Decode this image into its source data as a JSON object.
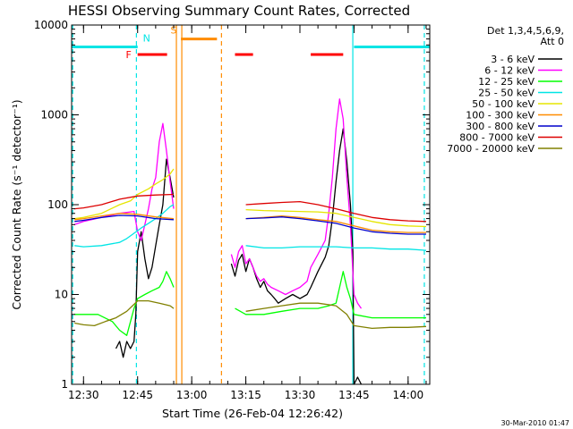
{
  "chart_data": {
    "type": "line",
    "title": "HESSI Observing Summary Count Rates, Corrected",
    "xlabel": "Start Time (26-Feb-04 12:26:42)",
    "ylabel": "Corrected Count Rate (s⁻¹ detector⁻¹)",
    "y_scale": "log",
    "ylim": [
      1,
      10000
    ],
    "xlim": [
      "12:26:42",
      "14:06:00"
    ],
    "ytick_labels": [
      "1",
      "10",
      "100",
      "1000",
      "10000"
    ],
    "xtick_labels": [
      "12:30",
      "12:45",
      "13:00",
      "13:15",
      "13:30",
      "13:45",
      "14:00"
    ],
    "legend_title": [
      "Det 1,3,4,5,6,9,",
      "Att 0"
    ],
    "timestamp": "30-Mar-2010 01:47",
    "state_flags": [
      {
        "label": "F",
        "color": "#ff0000",
        "level": 4700,
        "intervals": [
          [
            "12:45:00",
            "12:53:10"
          ],
          [
            "13:12:00",
            "13:17:00"
          ],
          [
            "13:33:00",
            "13:42:00"
          ]
        ]
      },
      {
        "label": "N",
        "color": "#00e5e5",
        "level": 5700,
        "intervals": [
          [
            "12:26:42",
            "12:45:00"
          ],
          [
            "13:45:00",
            "14:06:00"
          ]
        ]
      },
      {
        "label": "S",
        "color": "#ff8c00",
        "level": 7000,
        "intervals": [
          [
            "12:57:00",
            "13:07:00"
          ]
        ]
      }
    ],
    "vertical_lines": [
      {
        "time": "12:27:00",
        "color": "#00e5e5",
        "style": "dashed"
      },
      {
        "time": "12:44:40",
        "color": "#00e5e5",
        "style": "dashed"
      },
      {
        "time": "12:55:45",
        "color": "#ff8c00",
        "style": "solid"
      },
      {
        "time": "12:57:15",
        "color": "#ff8c00",
        "style": "solid"
      },
      {
        "time": "13:08:15",
        "color": "#ff8c00",
        "style": "dashed"
      },
      {
        "time": "13:44:40",
        "color": "#00e5e5",
        "style": "solid"
      },
      {
        "time": "14:04:30",
        "color": "#00e5e5",
        "style": "dashed"
      }
    ],
    "gaps": [
      [
        "12:55:45",
        "13:10:00"
      ]
    ],
    "series": [
      {
        "name": "3 - 6 keV",
        "color": "#000000",
        "x": [
          "12:27:30",
          "12:35:00",
          "12:39:00",
          "12:40:00",
          "12:41:00",
          "12:42:00",
          "12:43:00",
          "12:44:00",
          "12:44:30",
          "12:45:00",
          "12:46:00",
          "12:47:00",
          "12:48:00",
          "12:49:00",
          "12:50:00",
          "12:51:00",
          "12:52:00",
          "12:53:00",
          "12:54:00",
          "12:55:00",
          "13:10:00",
          "13:11:00",
          "13:12:00",
          "13:13:00",
          "13:14:00",
          "13:15:00",
          "13:16:00",
          "13:17:00",
          "13:18:00",
          "13:19:00",
          "13:20:00",
          "13:21:00",
          "13:22:00",
          "13:23:00",
          "13:24:00",
          "13:26:00",
          "13:28:00",
          "13:30:00",
          "13:32:00",
          "13:33:00",
          "13:35:00",
          "13:37:00",
          "13:38:00",
          "13:39:00",
          "13:40:00",
          "13:41:00",
          "13:42:00",
          "13:43:00",
          "13:44:00",
          "13:44:40",
          "13:45:00",
          "13:46:00",
          "13:47:00"
        ],
        "values": [
          null,
          null,
          2.5,
          3,
          2,
          3,
          2.5,
          3,
          6,
          30,
          50,
          25,
          15,
          20,
          35,
          60,
          100,
          320,
          200,
          120,
          null,
          22,
          16,
          24,
          28,
          18,
          25,
          20,
          15,
          12,
          14,
          11,
          10,
          9,
          8,
          9,
          10,
          9,
          10,
          12,
          18,
          26,
          35,
          70,
          180,
          400,
          700,
          300,
          100,
          30,
          1,
          1.2,
          1
        ]
      },
      {
        "name": "6 - 12 keV",
        "color": "#ff00ff",
        "x": [
          "12:27:30",
          "12:30:00",
          "12:35:00",
          "12:40:00",
          "12:42:00",
          "12:44:00",
          "12:45:00",
          "12:46:00",
          "12:47:00",
          "12:48:00",
          "12:49:00",
          "12:50:00",
          "12:51:00",
          "12:52:00",
          "12:53:00",
          "12:54:00",
          "12:55:00",
          "13:10:00",
          "13:11:00",
          "13:12:00",
          "13:13:00",
          "13:14:00",
          "13:15:00",
          "13:16:00",
          "13:17:00",
          "13:18:00",
          "13:19:00",
          "13:20:00",
          "13:21:00",
          "13:22:00",
          "13:24:00",
          "13:26:00",
          "13:28:00",
          "13:30:00",
          "13:32:00",
          "13:33:00",
          "13:35:00",
          "13:37:00",
          "13:38:00",
          "13:39:00",
          "13:40:00",
          "13:41:00",
          "13:42:00",
          "13:43:00",
          "13:44:00",
          "13:45:00",
          "13:46:00",
          "13:47:00"
        ],
        "values": [
          60,
          65,
          72,
          80,
          82,
          84,
          50,
          40,
          60,
          90,
          150,
          200,
          500,
          800,
          400,
          180,
          90,
          null,
          28,
          20,
          30,
          35,
          22,
          25,
          20,
          16,
          14,
          15,
          13,
          12,
          11,
          10,
          11,
          12,
          14,
          20,
          28,
          40,
          80,
          200,
          700,
          1500,
          900,
          200,
          60,
          10,
          8,
          7
        ]
      },
      {
        "name": "12 - 25 keV",
        "color": "#00ff00",
        "x": [
          "12:27:30",
          "12:30:00",
          "12:34:00",
          "12:38:00",
          "12:40:00",
          "12:42:00",
          "12:44:00",
          "12:45:00",
          "12:47:00",
          "12:49:00",
          "12:51:00",
          "12:52:00",
          "12:53:00",
          "12:54:00",
          "12:55:00",
          "13:10:00",
          "13:12:00",
          "13:15:00",
          "13:20:00",
          "13:25:00",
          "13:30:00",
          "13:35:00",
          "13:38:00",
          "13:40:00",
          "13:41:00",
          "13:42:00",
          "13:43:00",
          "13:44:00",
          "13:45:00",
          "13:50:00",
          "13:55:00",
          "14:00:00",
          "14:05:00"
        ],
        "values": [
          6,
          6,
          6,
          5,
          4,
          3.5,
          7,
          9,
          10,
          11,
          12,
          14,
          18,
          15,
          12,
          null,
          7,
          6,
          6,
          6.5,
          7,
          7,
          7.5,
          8,
          12,
          18,
          12,
          9,
          6,
          5.5,
          5.5,
          5.5,
          5.5
        ]
      },
      {
        "name": "25 - 50 keV",
        "color": "#00e5e5",
        "x": [
          "12:27:30",
          "12:30:00",
          "12:35:00",
          "12:40:00",
          "12:42:00",
          "12:44:00",
          "12:46:00",
          "12:48:00",
          "12:50:00",
          "12:52:00",
          "12:54:00",
          "12:55:00",
          "13:10:00",
          "13:15:00",
          "13:20:00",
          "13:25:00",
          "13:30:00",
          "13:35:00",
          "13:40:00",
          "13:45:00",
          "13:50:00",
          "13:55:00",
          "14:00:00",
          "14:05:00"
        ],
        "values": [
          35,
          34,
          35,
          38,
          42,
          48,
          55,
          62,
          70,
          80,
          95,
          100,
          null,
          35,
          33,
          33,
          34,
          34,
          34,
          33,
          33,
          32,
          32,
          31
        ]
      },
      {
        "name": "50 - 100 keV",
        "color": "#e5e500",
        "x": [
          "12:27:30",
          "12:30:00",
          "12:35:00",
          "12:40:00",
          "12:43:00",
          "12:45:00",
          "12:48:00",
          "12:50:00",
          "12:52:00",
          "12:54:00",
          "12:55:00",
          "13:10:00",
          "13:15:00",
          "13:20:00",
          "13:25:00",
          "13:30:00",
          "13:35:00",
          "13:40:00",
          "13:45:00",
          "13:50:00",
          "13:55:00",
          "14:00:00",
          "14:05:00"
        ],
        "values": [
          70,
          72,
          80,
          100,
          110,
          130,
          150,
          170,
          190,
          220,
          250,
          null,
          88,
          86,
          85,
          84,
          83,
          80,
          72,
          65,
          60,
          58,
          57
        ]
      },
      {
        "name": "100 - 300 keV",
        "color": "#ff8c00",
        "x": [
          "12:27:30",
          "12:30:00",
          "12:35:00",
          "12:40:00",
          "12:45:00",
          "12:50:00",
          "12:55:00",
          "13:10:00",
          "13:15:00",
          "13:20:00",
          "13:25:00",
          "13:30:00",
          "13:35:00",
          "13:40:00",
          "13:45:00",
          "13:50:00",
          "13:55:00",
          "14:00:00",
          "14:05:00"
        ],
        "values": [
          68,
          70,
          75,
          80,
          78,
          73,
          70,
          null,
          70,
          72,
          75,
          72,
          68,
          65,
          58,
          52,
          50,
          49,
          49
        ]
      },
      {
        "name": "300 - 800 keV",
        "color": "#0000cc",
        "x": [
          "12:27:30",
          "12:30:00",
          "12:35:00",
          "12:40:00",
          "12:45:00",
          "12:50:00",
          "12:55:00",
          "13:10:00",
          "13:15:00",
          "13:20:00",
          "13:25:00",
          "13:30:00",
          "13:35:00",
          "13:40:00",
          "13:45:00",
          "13:50:00",
          "13:55:00",
          "14:00:00",
          "14:05:00"
        ],
        "values": [
          65,
          67,
          72,
          76,
          75,
          70,
          68,
          null,
          70,
          71,
          73,
          70,
          66,
          62,
          55,
          50,
          48,
          47,
          47
        ]
      },
      {
        "name": "800 - 7000 keV",
        "color": "#dd0000",
        "x": [
          "12:27:30",
          "12:30:00",
          "12:35:00",
          "12:40:00",
          "12:45:00",
          "12:50:00",
          "12:55:00",
          "13:10:00",
          "13:15:00",
          "13:20:00",
          "13:25:00",
          "13:30:00",
          "13:35:00",
          "13:40:00",
          "13:45:00",
          "13:50:00",
          "13:55:00",
          "14:00:00",
          "14:05:00"
        ],
        "values": [
          90,
          92,
          100,
          115,
          125,
          128,
          130,
          null,
          100,
          103,
          106,
          108,
          100,
          90,
          80,
          72,
          68,
          66,
          65
        ]
      },
      {
        "name": "7000 - 20000 keV",
        "color": "#808000",
        "x": [
          "12:27:30",
          "12:30:00",
          "12:33:00",
          "12:36:00",
          "12:39:00",
          "12:42:00",
          "12:45:00",
          "12:48:00",
          "12:51:00",
          "12:54:00",
          "12:55:00",
          "13:10:00",
          "13:15:00",
          "13:20:00",
          "13:25:00",
          "13:30:00",
          "13:35:00",
          "13:40:00",
          "13:43:00",
          "13:45:00",
          "13:50:00",
          "13:55:00",
          "14:00:00",
          "14:05:00"
        ],
        "values": [
          4.8,
          4.6,
          4.5,
          5,
          5.5,
          6.5,
          8.5,
          8.5,
          8,
          7.5,
          7,
          null,
          6.5,
          7,
          7.5,
          8,
          8,
          7.5,
          6,
          4.5,
          4.2,
          4.3,
          4.3,
          4.4
        ]
      }
    ]
  }
}
